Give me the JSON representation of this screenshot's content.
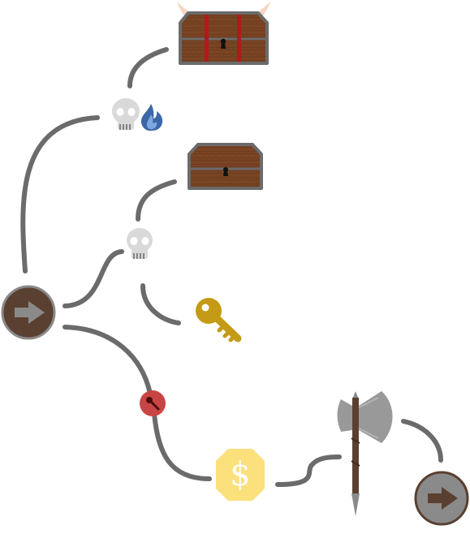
{
  "map": {
    "path_color": "#6b6b6b",
    "nodes": {
      "start": {
        "icon": "arrow-right-icon",
        "fill": "#5a4030",
        "ring": "#8a8a8a"
      },
      "end": {
        "icon": "arrow-right-icon",
        "fill": "#8a8a8a",
        "ring": "#5a4030"
      },
      "elite_encounter": {
        "icon": "skull-icon",
        "modifier": "blue-flame-icon"
      },
      "encounter": {
        "icon": "skull-icon"
      },
      "boss_chest": {
        "icon": "horned-treasure-chest-icon"
      },
      "chest": {
        "icon": "treasure-chest-icon"
      },
      "key": {
        "icon": "golden-key-icon",
        "color": "#c49a16"
      },
      "locked_gate": {
        "icon": "red-key-lock-icon",
        "color": "#c94545"
      },
      "shop": {
        "icon": "gold-coin-icon",
        "symbol": "$",
        "color": "#fbe07c"
      },
      "weapon": {
        "icon": "battle-axe-icon"
      }
    }
  }
}
